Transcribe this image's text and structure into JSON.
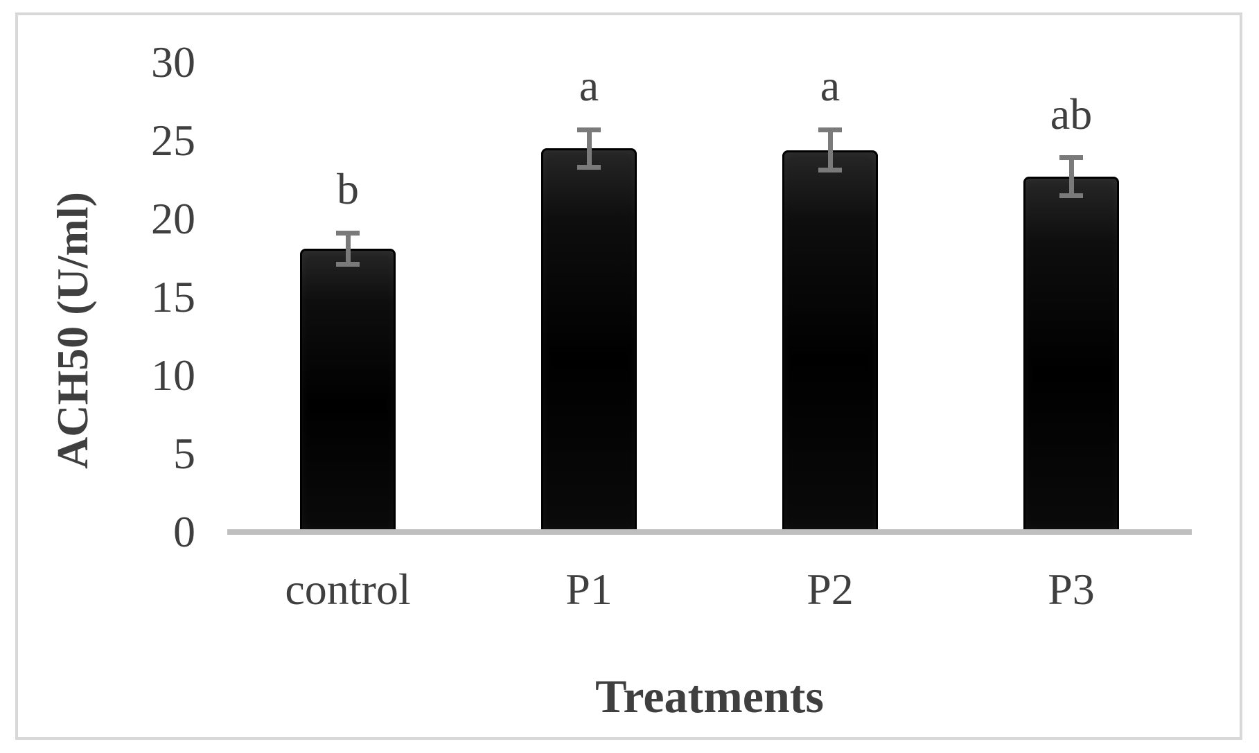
{
  "chart_data": {
    "type": "bar",
    "title": "",
    "xlabel": "Treatments",
    "ylabel": "ACH50 (U/ml)",
    "categories": [
      "control",
      "P1",
      "P2",
      "P3"
    ],
    "series": [
      {
        "name": "ACH50",
        "values": [
          18.1,
          24.5,
          24.4,
          22.7
        ],
        "errors": [
          1.0,
          1.2,
          1.3,
          1.2
        ],
        "significance_letters": [
          "b",
          "a",
          "a",
          "ab"
        ]
      }
    ],
    "ylim": [
      0,
      30
    ],
    "yticks": [
      0,
      5,
      10,
      15,
      20,
      25,
      30
    ],
    "grid": false,
    "legend_position": "none",
    "colors": {
      "bar_fill": "#050505",
      "bar_border": "#000000",
      "error_bar": "#7a7a7a",
      "axis_text": "#3f3f3f",
      "baseline": "#bfbfbf",
      "frame_border": "#d8d8d8",
      "background": "#ffffff"
    }
  }
}
